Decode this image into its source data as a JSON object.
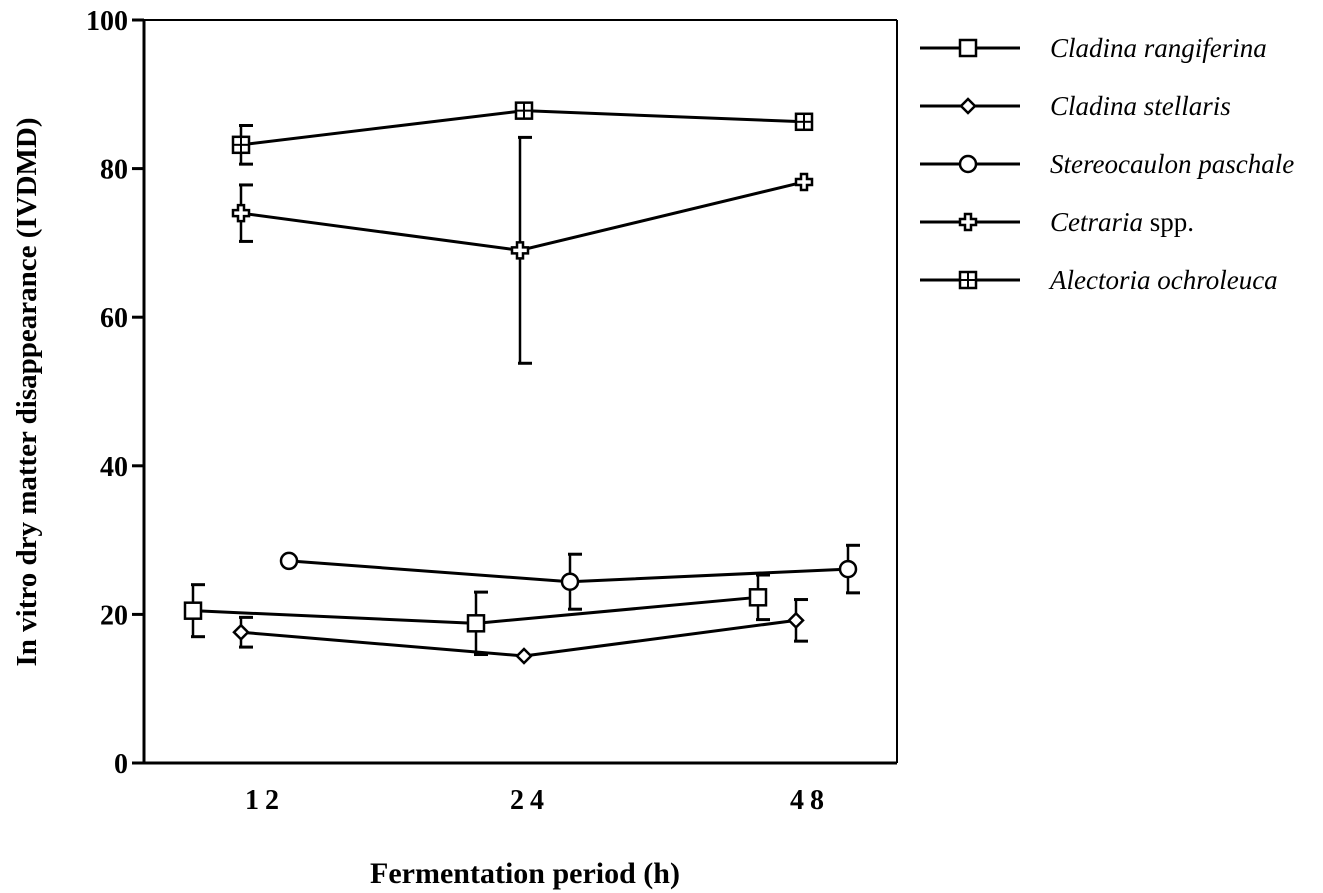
{
  "chart_data": {
    "type": "line",
    "title": "",
    "xlabel": "Fermentation period (h)",
    "ylabel": "In vitro dry matter disappearance (IVDMD)",
    "categories": [
      "12",
      "24",
      "48"
    ],
    "ylim": [
      0,
      100
    ],
    "yticks": [
      0,
      20,
      40,
      60,
      80,
      100
    ],
    "grid": false,
    "legend_position": "right",
    "series": [
      {
        "name": "Cladina rangiferina",
        "legend_italic": "Cladina rangiferina",
        "legend_suffix": "",
        "marker": "square",
        "x": [
          12,
          24,
          48
        ],
        "values": [
          20.5,
          18.8,
          22.3
        ],
        "errors": [
          3.5,
          4.2,
          3.0
        ]
      },
      {
        "name": "Cladina stellaris",
        "legend_italic": "Cladina stellaris",
        "legend_suffix": "",
        "marker": "diamond",
        "x": [
          12,
          24,
          48
        ],
        "values": [
          17.6,
          14.4,
          19.2
        ],
        "errors": [
          2.0,
          0.0,
          2.8
        ]
      },
      {
        "name": "Stereocaulon paschale",
        "legend_italic": "Stereocaulon paschale",
        "legend_suffix": "",
        "marker": "circle",
        "x": [
          12,
          24,
          48
        ],
        "values": [
          27.2,
          24.4,
          26.1
        ],
        "errors": [
          0.0,
          3.7,
          3.2
        ]
      },
      {
        "name": "Cetraria spp.",
        "legend_italic": "Cetraria",
        "legend_suffix": " spp.",
        "marker": "cross",
        "x": [
          12,
          24,
          48
        ],
        "values": [
          74.0,
          69.0,
          78.2
        ],
        "errors": [
          3.8,
          15.2,
          0.0
        ]
      },
      {
        "name": "Alectoria ochroleuca",
        "legend_italic": "Alectoria ochroleuca",
        "legend_suffix": "",
        "marker": "boxcross",
        "x": [
          12,
          24,
          48
        ],
        "values": [
          83.2,
          87.8,
          86.3
        ],
        "errors": [
          2.6,
          0.0,
          0.0
        ]
      }
    ],
    "colors": {
      "line": "#000000",
      "background": "#ffffff"
    }
  }
}
